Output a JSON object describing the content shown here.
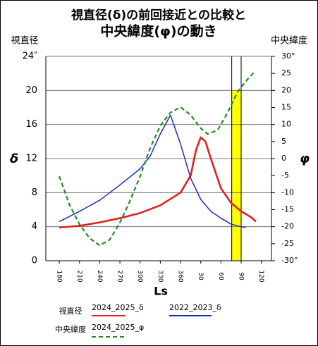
{
  "chart_data": {
    "type": "line",
    "title": [
      "視直径(δ)の前回接近との比較と",
      "中央緯度(φ)の動き"
    ],
    "y_label": "視直径",
    "y2_label": "中央緯度",
    "y_symbol": "δ",
    "y2_symbol": "φ",
    "x_label": "Ls",
    "xlim": [
      160,
      495
    ],
    "xticks": [
      180,
      210,
      240,
      270,
      300,
      330,
      360,
      {
        "value": 390,
        "label": "30"
      },
      {
        "value": 420,
        "label": "60"
      },
      {
        "value": 450,
        "label": "90"
      },
      {
        "value": 480,
        "label": "120"
      }
    ],
    "ylim": [
      0,
      24
    ],
    "yticks": [
      0,
      4,
      8,
      12,
      16,
      20,
      {
        "value": 24,
        "label": "24″"
      }
    ],
    "y2lim": [
      -30,
      30
    ],
    "y2ticks": [
      {
        "value": -30,
        "label": "-30°"
      },
      -25,
      -20,
      -15,
      -10,
      -5,
      0,
      5,
      10,
      15,
      20,
      25,
      {
        "value": 30,
        "label": "30°"
      }
    ],
    "grid": true,
    "highlight": {
      "x": [
        436,
        450
      ],
      "top": 20,
      "color": "#ffff00"
    },
    "series": [
      {
        "name": "2024_2025_δ",
        "color": "#e02020",
        "group": "y",
        "x": [
          180,
          210,
          240,
          270,
          300,
          330,
          360,
          375,
          383,
          390,
          397,
          405,
          420,
          435,
          450,
          465,
          472
        ],
        "values": [
          3.9,
          4.1,
          4.5,
          5.0,
          5.6,
          6.5,
          8.0,
          10.0,
          13.0,
          14.5,
          14.0,
          12.0,
          8.5,
          6.8,
          5.8,
          5.1,
          4.6
        ]
      },
      {
        "name": "2022_2023_δ",
        "color": "#1a2fbf",
        "group": "y",
        "x": [
          180,
          210,
          240,
          270,
          300,
          315,
          330,
          345,
          360,
          375,
          390,
          405,
          420,
          435,
          450,
          457
        ],
        "values": [
          4.6,
          5.8,
          7.1,
          8.9,
          10.8,
          12.3,
          14.9,
          17.1,
          13.7,
          9.7,
          7.2,
          5.8,
          5.0,
          4.3,
          4.0,
          3.9
        ]
      },
      {
        "name": "2024_2025_φ",
        "color": "#1e8c1e",
        "group": "y2",
        "axis": "y2",
        "dashed": true,
        "x": [
          180,
          195,
          210,
          225,
          240,
          255,
          270,
          285,
          300,
          315,
          330,
          345,
          360,
          375,
          390,
          400,
          415,
          430,
          445,
          460,
          470
        ],
        "values": [
          -5.2,
          -13.5,
          -19.3,
          -23.4,
          -25.5,
          -23.8,
          -18.8,
          -12.4,
          -5.2,
          3.1,
          9.7,
          13.5,
          15.1,
          12.8,
          8.9,
          7.2,
          8.3,
          13.5,
          19.7,
          23.4,
          25.5
        ]
      }
    ]
  }
}
